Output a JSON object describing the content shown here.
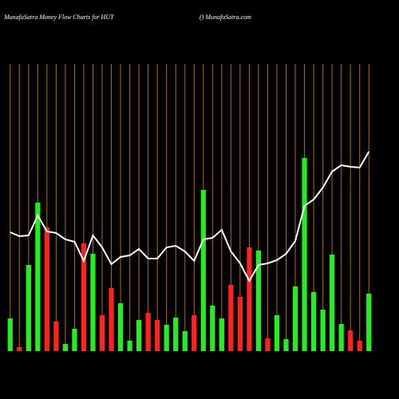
{
  "chart_data": {
    "type": "bar",
    "title": "MunafaSatra  Money Flow  Charts for HUT",
    "subtitle": "() MunafaSatra.com",
    "values": [
      41,
      5,
      108,
      186,
      155,
      37,
      9,
      28,
      135,
      122,
      45,
      79,
      60,
      13,
      39,
      48,
      39,
      33,
      42,
      25,
      45,
      202,
      57,
      41,
      83,
      68,
      130,
      126,
      16,
      45,
      15,
      81,
      242,
      74,
      52,
      121,
      34,
      26,
      13,
      72
    ],
    "colors": [
      "#22ee22",
      "#ff2222",
      "#22ee22",
      "#22ee22",
      "#ff2222",
      "#ff2222",
      "#22ee22",
      "#22ee22",
      "#ff2222",
      "#22ee22",
      "#ff2222",
      "#ff2222",
      "#22ee22",
      "#22ee22",
      "#22ee22",
      "#ff2222",
      "#ff2222",
      "#22ee22",
      "#22ee22",
      "#22ee22",
      "#ff2222",
      "#22ee22",
      "#22ee22",
      "#22ee22",
      "#ff2222",
      "#ff2222",
      "#ff2222",
      "#22ee22",
      "#ff2222",
      "#22ee22",
      "#22ee22",
      "#22ee22",
      "#22ee22",
      "#22ee22",
      "#22ee22",
      "#22ee22",
      "#22ee22",
      "#ff2222",
      "#ff2222",
      "#22ee22"
    ],
    "line_values": [
      149,
      144,
      145,
      170,
      150,
      148,
      140,
      137,
      113,
      145,
      130,
      109,
      118,
      120,
      128,
      116,
      116,
      130,
      132,
      125,
      113,
      140,
      142,
      152,
      125,
      110,
      88,
      108,
      110,
      114,
      122,
      138,
      182,
      190,
      205,
      225,
      233,
      231,
      230,
      250
    ],
    "line_color": "#ffffff",
    "grid_color": "#b86a00",
    "ylim": [
      0,
      360
    ],
    "grid": true
  }
}
